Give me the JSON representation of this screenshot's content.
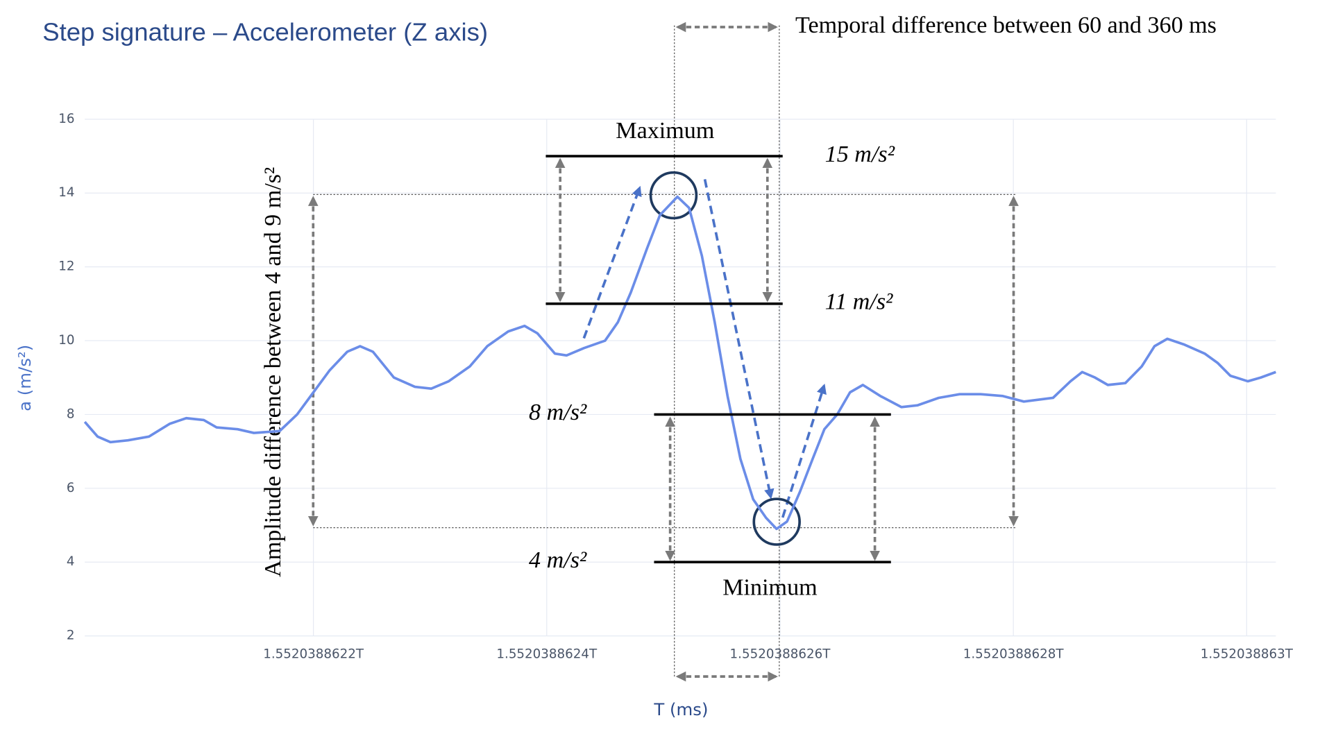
{
  "chart_data": {
    "type": "line",
    "title": "Step signature – Accelerometer (Z axis)",
    "x_label": "T (ms)",
    "y_label": "a (m/s²)",
    "color": "#6b8de8",
    "xlim": [
      1552038862004,
      1552038863025
    ],
    "ylim": [
      2,
      16
    ],
    "xticks": [
      {
        "value": 1552038862200,
        "label": "1.5520388622T"
      },
      {
        "value": 1552038862400,
        "label": "1.5520388624T"
      },
      {
        "value": 1552038862600,
        "label": "1.5520388626T"
      },
      {
        "value": 1552038862800,
        "label": "1.5520388628T"
      },
      {
        "value": 1552038863000,
        "label": "1.552038863T"
      }
    ],
    "yticks": [
      2,
      4,
      6,
      8,
      10,
      12,
      14,
      16
    ],
    "grid": true,
    "x": [
      1552038862004,
      1552038862015,
      1552038862026,
      1552038862041,
      1552038862059,
      1552038862077,
      1552038862091,
      1552038862106,
      1552038862117,
      1552038862135,
      1552038862149,
      1552038862171,
      1552038862186,
      1552038862200,
      1552038862214,
      1552038862229,
      1552038862240,
      1552038862251,
      1552038862269,
      1552038862287,
      1552038862301,
      1552038862316,
      1552038862334,
      1552038862349,
      1552038862367,
      1552038862381,
      1552038862392,
      1552038862407,
      1552038862417,
      1552038862432,
      1552038862450,
      1552038862461,
      1552038862472,
      1552038862486,
      1552038862497,
      1552038862512,
      1552038862522,
      1552038862533,
      1552038862544,
      1552038862555,
      1552038862566,
      1552038862577,
      1552038862588,
      1552038862597,
      1552038862606,
      1552038862617,
      1552038862628,
      1552038862638,
      1552038862649,
      1552038862660,
      1552038862671,
      1552038862686,
      1552038862704,
      1552038862718,
      1552038862736,
      1552038862754,
      1552038862772,
      1552038862791,
      1552038862809,
      1552038862834,
      1552038862849,
      1552038862859,
      1552038862870,
      1552038862881,
      1552038862896,
      1552038862910,
      1552038862921,
      1552038862932,
      1552038862946,
      1552038862964,
      1552038862975,
      1552038862986,
      1552038863001,
      1552038863012,
      1552038863025
    ],
    "values": [
      7.8,
      7.4,
      7.25,
      7.3,
      7.4,
      7.75,
      7.9,
      7.85,
      7.65,
      7.6,
      7.5,
      7.55,
      8.0,
      8.6,
      9.2,
      9.7,
      9.85,
      9.7,
      9.0,
      8.75,
      8.7,
      8.9,
      9.3,
      9.85,
      10.25,
      10.4,
      10.2,
      9.65,
      9.6,
      9.8,
      10.0,
      10.5,
      11.3,
      12.5,
      13.4,
      13.9,
      13.6,
      12.3,
      10.5,
      8.5,
      6.8,
      5.7,
      5.2,
      4.9,
      5.1,
      5.9,
      6.8,
      7.6,
      8.0,
      8.6,
      8.8,
      8.5,
      8.2,
      8.25,
      8.45,
      8.55,
      8.55,
      8.5,
      8.35,
      8.45,
      8.9,
      9.15,
      9.0,
      8.8,
      8.85,
      9.3,
      9.85,
      10.05,
      9.9,
      9.65,
      9.4,
      9.05,
      8.9,
      9.0,
      9.15
    ],
    "thresholds": [
      {
        "label": "15 m/s²",
        "value": 15
      },
      {
        "label": "11 m/s²",
        "value": 11
      },
      {
        "label": "8 m/s²",
        "value": 8
      },
      {
        "label": "4 m/s²",
        "value": 4
      }
    ],
    "max_label": "Maximum",
    "min_label": "Minimum",
    "temporal_note": "Temporal difference between 60 and 360 ms",
    "amplitude_note": "Amplitude difference between 4 and 9 m/s²"
  }
}
